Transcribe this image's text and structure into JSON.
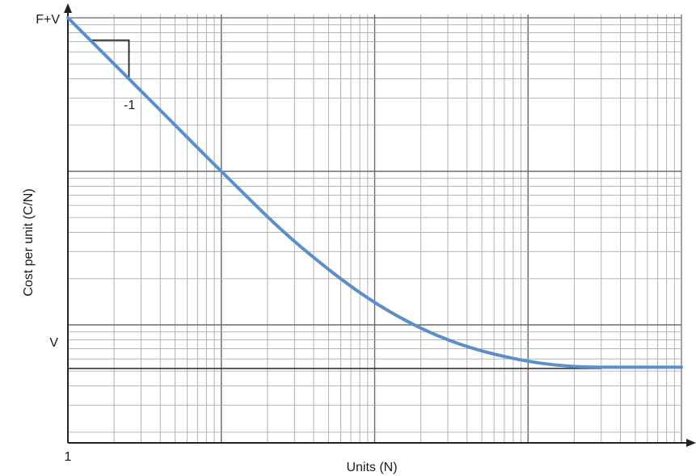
{
  "chart_data": {
    "type": "line",
    "title": "",
    "xlabel": "Units (N)",
    "ylabel": "Cost per unit (C/N)",
    "x_scale": "log",
    "y_scale": "log",
    "x_decades": 4,
    "y_decades": 2.8,
    "x_tick_labels": [
      "1"
    ],
    "y_tick_labels": [
      "F+V",
      "V"
    ],
    "grid": true,
    "series": [
      {
        "color": "#5b8fc9",
        "points": [
          {
            "x": 1,
            "y": 1
          },
          {
            "x": 2,
            "y": 0.5
          },
          {
            "x": 4,
            "y": 0.25
          },
          {
            "x": 10,
            "y": 0.1
          },
          {
            "x": 30,
            "y": 0.035
          },
          {
            "x": 100,
            "y": 0.014
          },
          {
            "x": 300,
            "y": 0.008
          },
          {
            "x": 1000,
            "y": 0.0058
          },
          {
            "x": 3000,
            "y": 0.0053
          },
          {
            "x": 10000,
            "y": 0.0053
          }
        ]
      }
    ],
    "reference_lines": [
      {
        "label": "V",
        "y": 0.0052,
        "x_end": 3000
      }
    ],
    "annotations": [
      {
        "text": "-1",
        "type": "slope-triangle",
        "x_from": 1.4,
        "x_to": 2.5
      }
    ]
  }
}
